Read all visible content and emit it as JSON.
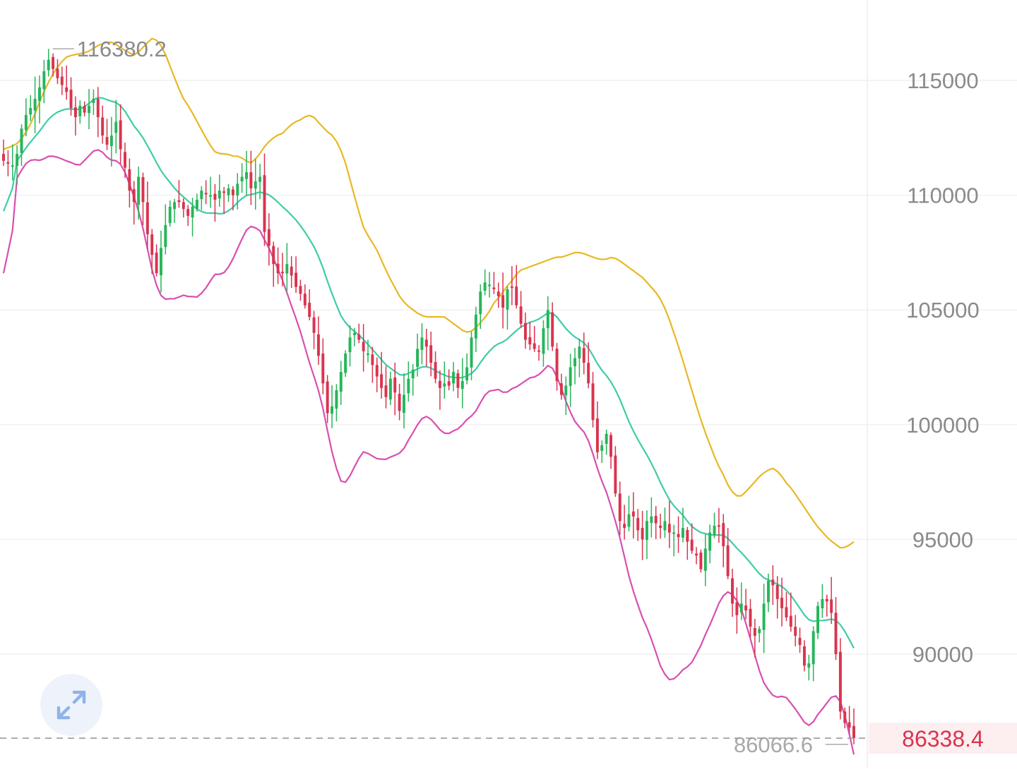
{
  "colors": {
    "up": "#27b55a",
    "down": "#d9344f",
    "upper_band": "#e8b824",
    "middle_band": "#3fcca8",
    "lower_band": "#d84fb1",
    "grid": "#f1f1f1",
    "axis_text": "#8a8a8a",
    "current_price": "#d9344f",
    "current_price_bg": "#fdeef0",
    "expand_icon": "#8fb3ea"
  },
  "expand_button": {
    "icon": "expand-arrows-icon"
  },
  "chart_data": {
    "type": "candlestick",
    "overlay": "bollinger-bands",
    "y_axis": {
      "position": "right",
      "ticks": [
        115000,
        110000,
        105000,
        100000,
        95000,
        90000
      ],
      "tick_labels": [
        "115000",
        "110000",
        "105000",
        "100000",
        "95000",
        "90000"
      ],
      "range": [
        85900,
        118400
      ]
    },
    "grid": true,
    "annotations": {
      "high_label": "116380.2",
      "high_value": 116380.2,
      "low_label": "86066.6",
      "low_value": 86066.6,
      "current_price_label": "86338.4",
      "current_price": 86338.4
    },
    "closes": [
      111500,
      111400,
      111300,
      111800,
      112900,
      113500,
      113800,
      114200,
      114700,
      115400,
      115900,
      115500,
      115100,
      114800,
      114500,
      113800,
      113400,
      113900,
      113600,
      113900,
      114200,
      113400,
      112600,
      112200,
      112600,
      113200,
      112000,
      111200,
      110200,
      109700,
      110800,
      109700,
      108300,
      107400,
      106600,
      107700,
      108700,
      109500,
      109700,
      109700,
      109400,
      109100,
      109500,
      109800,
      110200,
      110100,
      110000,
      109800,
      110200,
      110100,
      110300,
      110000,
      110500,
      110800,
      111000,
      110300,
      110600,
      110800,
      108400,
      107800,
      107000,
      106600,
      106600,
      107000,
      106500,
      106000,
      105700,
      105200,
      104700,
      104000,
      103000,
      101800,
      100500,
      100800,
      101500,
      102300,
      103100,
      103800,
      104000,
      103700,
      103200,
      103100,
      102600,
      102100,
      101600,
      101200,
      102000,
      101400,
      100600,
      101300,
      102000,
      102400,
      103300,
      103800,
      103400,
      102700,
      102000,
      101600,
      101800,
      101700,
      102300,
      101600,
      101900,
      102500,
      103800,
      104800,
      105800,
      106200,
      106100,
      105900,
      105600,
      105100,
      105900,
      106000,
      105200,
      104400,
      103700,
      103500,
      103300,
      103200,
      104200,
      105000,
      103400,
      101900,
      101300,
      101700,
      102500,
      102900,
      103400,
      102700,
      101800,
      100200,
      98800,
      99100,
      99600,
      98600,
      97000,
      95800,
      95500,
      96100,
      96000,
      95400,
      95000,
      95800,
      96000,
      95700,
      95500,
      95800,
      95300,
      95300,
      95100,
      95500,
      94900,
      94500,
      94300,
      93700,
      94600,
      95300,
      95600,
      95600,
      94700,
      93400,
      92200,
      91700,
      92200,
      91900,
      91200,
      90800,
      91100,
      92200,
      93200,
      93000,
      92400,
      92000,
      91600,
      91200,
      90800,
      90400,
      89500,
      89600,
      91000,
      92100,
      92400,
      92300,
      91800,
      90000,
      87500,
      87000,
      86800,
      86338.4
    ],
    "bollinger": {
      "upper": [
        112000,
        112100,
        112200,
        112500,
        112900,
        113500,
        114200,
        114800,
        115300,
        115700,
        116000,
        116100,
        116150,
        116200,
        116300,
        116500,
        116600,
        116700,
        116600,
        116400,
        116250,
        116100,
        116300,
        116600,
        116850,
        116700,
        116200,
        115500,
        114800,
        114200,
        113800,
        113300,
        112800,
        112300,
        111900,
        111800,
        111800,
        111700,
        111700,
        111500,
        111400,
        111700,
        112100,
        112400,
        112600,
        112700,
        113000,
        113200,
        113300,
        113500,
        113400,
        113100,
        112800,
        112600,
        112200,
        111500,
        110500,
        109500,
        108600,
        108100,
        107700,
        107100,
        106500,
        106000,
        105500,
        105200,
        105000,
        104800,
        104700,
        104700,
        104700,
        104700,
        104500,
        104300,
        104100,
        104000,
        104200,
        104500,
        104800,
        105300,
        105600,
        106000,
        106300,
        106700,
        106800,
        106900,
        107000,
        107100,
        107200,
        107300,
        107300,
        107400,
        107500,
        107500,
        107400,
        107300,
        107200,
        107200,
        107300,
        107200,
        107000,
        106800,
        106600,
        106400,
        106100,
        105800,
        105400,
        104800,
        104000,
        103200,
        102300,
        101400,
        100500,
        99700,
        99000,
        98300,
        97800,
        97200,
        96900,
        96900,
        97200,
        97500,
        97800,
        98000,
        98100,
        97900,
        97500,
        97200,
        96800,
        96400,
        96000,
        95600,
        95300,
        95000,
        94800,
        94600,
        94700,
        94900
      ]
    }
  }
}
